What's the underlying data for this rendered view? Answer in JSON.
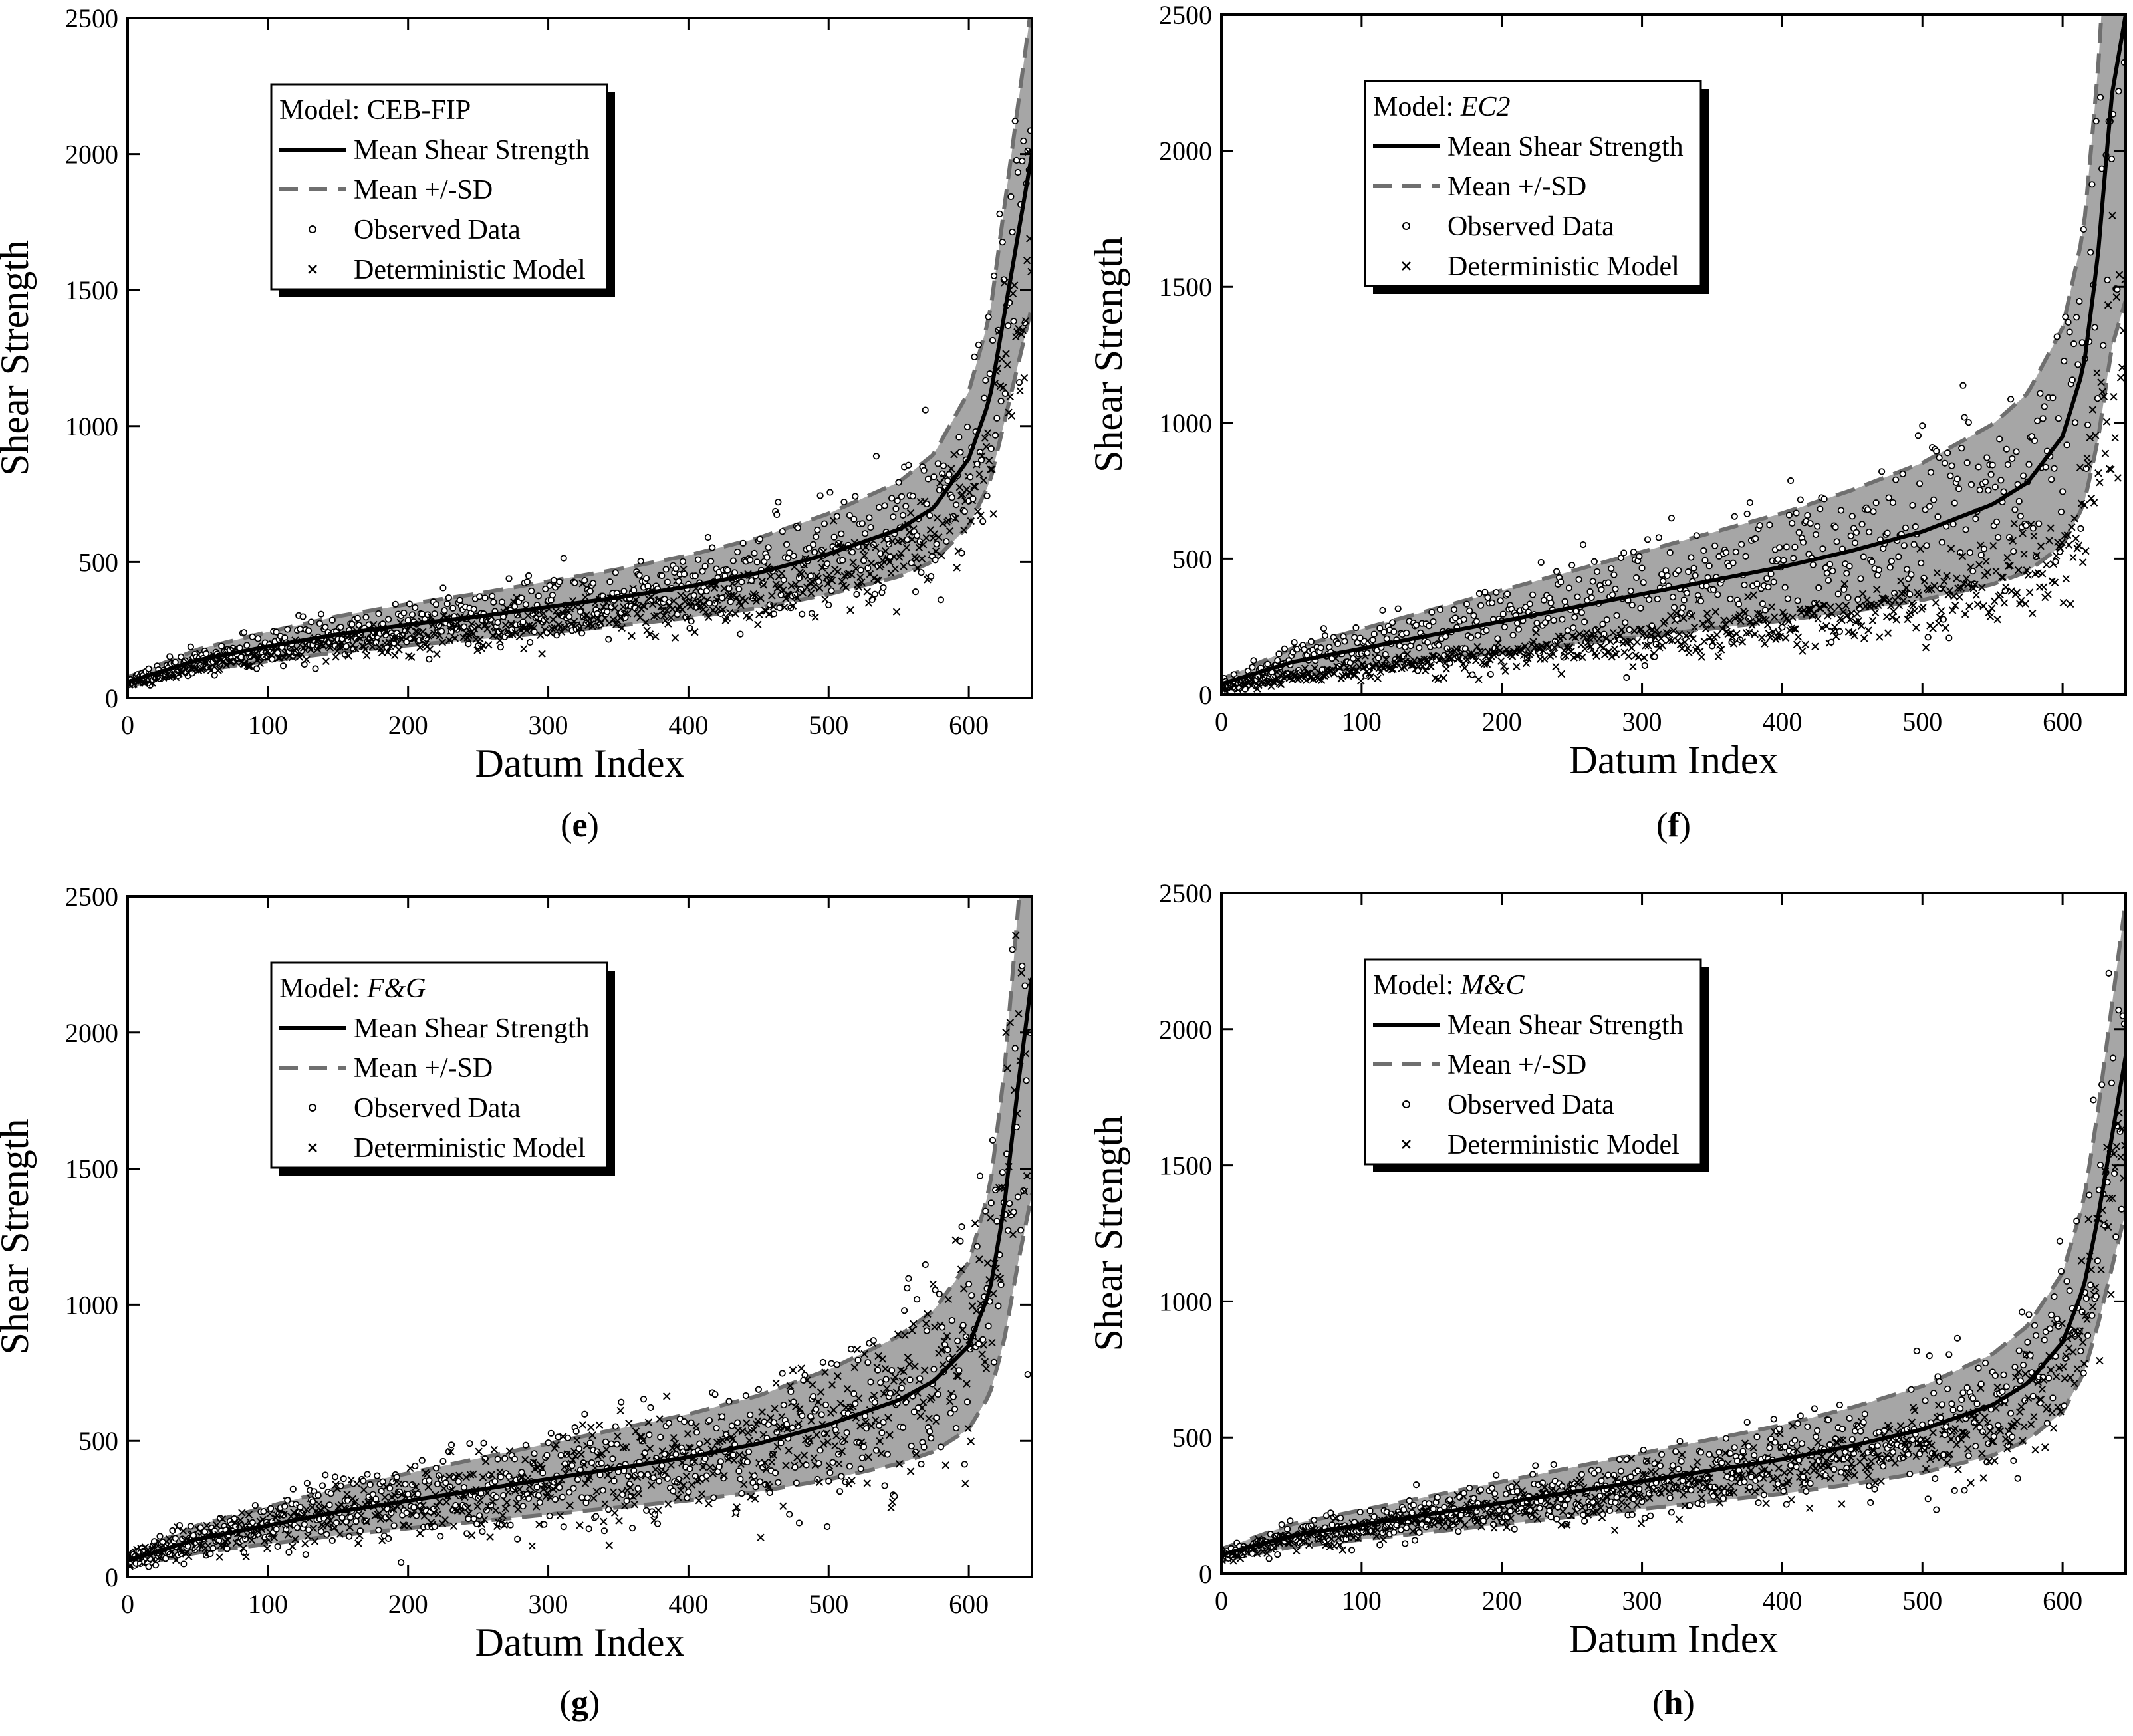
{
  "chart_data": [
    {
      "type": "scatter",
      "panel_label": "e",
      "model_prefix": "Model: ",
      "model_name": "CEB-FIP",
      "model_italic": false,
      "xlabel": "Datum Index",
      "ylabel": "Shear Strength",
      "xlim": [
        0,
        645
      ],
      "ylim": [
        0,
        2500
      ],
      "xticks": [
        0,
        100,
        200,
        300,
        400,
        500,
        600
      ],
      "yticks": [
        0,
        500,
        1000,
        1500,
        2000,
        2500
      ],
      "legend": [
        "Mean Shear Strength",
        "Mean +/-SD",
        "Observed Data",
        "Deterministic Model"
      ],
      "legend_position": "top-left",
      "mean_curve": [
        [
          0,
          60
        ],
        [
          50,
          140
        ],
        [
          100,
          190
        ],
        [
          150,
          235
        ],
        [
          200,
          270
        ],
        [
          250,
          300
        ],
        [
          300,
          335
        ],
        [
          350,
          370
        ],
        [
          400,
          410
        ],
        [
          450,
          460
        ],
        [
          500,
          530
        ],
        [
          550,
          620
        ],
        [
          575,
          700
        ],
        [
          600,
          880
        ],
        [
          615,
          1100
        ],
        [
          625,
          1400
        ],
        [
          635,
          1700
        ],
        [
          645,
          2000
        ]
      ],
      "sd_offset": 0.28,
      "model_ratio": 0.85,
      "obs_noise": 0.18,
      "model_noise": 0.14,
      "seed": 11
    },
    {
      "type": "scatter",
      "panel_label": "f",
      "model_prefix": "Model: ",
      "model_name": "EC2",
      "model_italic": true,
      "xlabel": "Datum Index",
      "ylabel": "Shear Strength",
      "xlim": [
        0,
        645
      ],
      "ylim": [
        0,
        2500
      ],
      "xticks": [
        0,
        100,
        200,
        300,
        400,
        500,
        600
      ],
      "yticks": [
        0,
        500,
        1000,
        1500,
        2000,
        2500
      ],
      "legend": [
        "Mean Shear Strength",
        "Mean +/-SD",
        "Observed Data",
        "Deterministic Model"
      ],
      "legend_position": "top-left",
      "mean_curve": [
        [
          0,
          40
        ],
        [
          50,
          120
        ],
        [
          100,
          170
        ],
        [
          150,
          220
        ],
        [
          200,
          270
        ],
        [
          250,
          320
        ],
        [
          300,
          370
        ],
        [
          350,
          420
        ],
        [
          400,
          470
        ],
        [
          450,
          530
        ],
        [
          500,
          600
        ],
        [
          550,
          700
        ],
        [
          575,
          780
        ],
        [
          600,
          950
        ],
        [
          615,
          1200
        ],
        [
          625,
          1600
        ],
        [
          635,
          2200
        ],
        [
          645,
          2500
        ]
      ],
      "sd_offset": 0.42,
      "model_ratio": 0.55,
      "obs_noise": 0.28,
      "model_noise": 0.2,
      "seed": 23
    },
    {
      "type": "scatter",
      "panel_label": "g",
      "model_prefix": "Model: ",
      "model_name": "F&G",
      "model_italic": true,
      "xlabel": "Datum Index",
      "ylabel": "Shear Strength",
      "xlim": [
        0,
        645
      ],
      "ylim": [
        0,
        2500
      ],
      "xticks": [
        0,
        100,
        200,
        300,
        400,
        500,
        600
      ],
      "yticks": [
        0,
        500,
        1000,
        1500,
        2000,
        2500
      ],
      "legend": [
        "Mean Shear Strength",
        "Mean +/-SD",
        "Observed Data",
        "Deterministic Model"
      ],
      "legend_position": "top-left",
      "mean_curve": [
        [
          0,
          60
        ],
        [
          50,
          140
        ],
        [
          100,
          190
        ],
        [
          150,
          240
        ],
        [
          200,
          280
        ],
        [
          250,
          320
        ],
        [
          300,
          360
        ],
        [
          350,
          400
        ],
        [
          400,
          440
        ],
        [
          450,
          490
        ],
        [
          500,
          560
        ],
        [
          550,
          650
        ],
        [
          575,
          720
        ],
        [
          600,
          850
        ],
        [
          615,
          1050
        ],
        [
          625,
          1350
        ],
        [
          635,
          1800
        ],
        [
          645,
          2200
        ]
      ],
      "sd_offset": 0.36,
      "model_ratio": 1.0,
      "obs_noise": 0.26,
      "model_noise": 0.24,
      "seed": 37
    },
    {
      "type": "scatter",
      "panel_label": "h",
      "model_prefix": "Model: ",
      "model_name": "M&C",
      "model_italic": true,
      "xlabel": "Datum Index",
      "ylabel": "Shear Strength",
      "xlim": [
        0,
        645
      ],
      "ylim": [
        0,
        2500
      ],
      "xticks": [
        0,
        100,
        200,
        300,
        400,
        500,
        600
      ],
      "yticks": [
        0,
        500,
        1000,
        1500,
        2000,
        2500
      ],
      "legend": [
        "Mean Shear Strength",
        "Mean +/-SD",
        "Observed Data",
        "Deterministic Model"
      ],
      "legend_position": "top-left",
      "mean_curve": [
        [
          0,
          70
        ],
        [
          50,
          140
        ],
        [
          100,
          180
        ],
        [
          150,
          220
        ],
        [
          200,
          260
        ],
        [
          250,
          300
        ],
        [
          300,
          340
        ],
        [
          350,
          380
        ],
        [
          400,
          420
        ],
        [
          450,
          470
        ],
        [
          500,
          530
        ],
        [
          550,
          620
        ],
        [
          575,
          700
        ],
        [
          600,
          850
        ],
        [
          615,
          1050
        ],
        [
          625,
          1300
        ],
        [
          635,
          1600
        ],
        [
          645,
          1900
        ]
      ],
      "sd_offset": 0.3,
      "model_ratio": 0.9,
      "obs_noise": 0.2,
      "model_noise": 0.15,
      "seed": 53
    }
  ]
}
